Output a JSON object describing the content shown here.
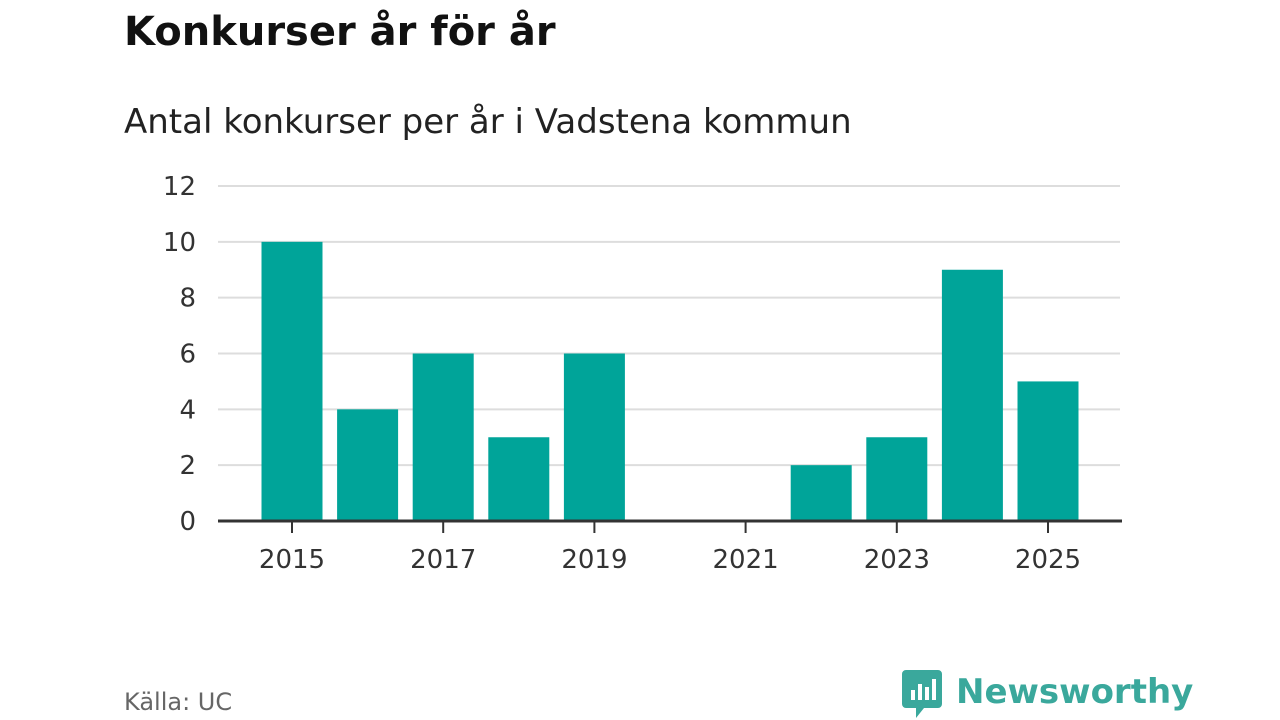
{
  "header": {
    "title": "Konkurser år för år",
    "subtitle": "Antal konkurser per år i Vadstena kommun"
  },
  "footer": {
    "source": "Källa: UC",
    "brand": "Newsworthy",
    "brand_icon": "newsworthy-logo-icon"
  },
  "colors": {
    "bar": "#00a499",
    "grid": "#dddddd",
    "axis": "#333333",
    "brand": "#3aa89c"
  },
  "chart_data": {
    "type": "bar",
    "title": "Konkurser år för år",
    "subtitle": "Antal konkurser per år i Vadstena kommun",
    "xlabel": "",
    "ylabel": "",
    "categories": [
      2015,
      2016,
      2017,
      2018,
      2019,
      2020,
      2021,
      2022,
      2023,
      2024,
      2025
    ],
    "values": [
      10,
      4,
      6,
      3,
      6,
      0,
      0,
      2,
      3,
      9,
      5
    ],
    "xticks": [
      "2015",
      "2017",
      "2019",
      "2021",
      "2023",
      "2025"
    ],
    "yticks": [
      "0",
      "2",
      "4",
      "6",
      "8",
      "10",
      "12"
    ],
    "ylim": [
      0,
      12
    ],
    "grid": true,
    "legend": "none"
  }
}
